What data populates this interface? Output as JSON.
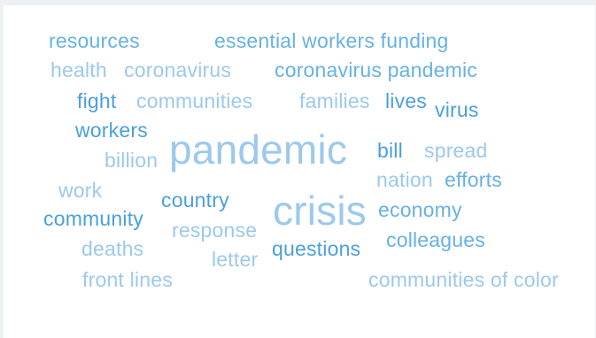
{
  "colors": {
    "dark": "#4a9fde",
    "mid": "#67b1e4",
    "light": "#9cc9ec",
    "background": "#ffffff"
  },
  "words": [
    {
      "id": "resources",
      "text": "resources"
    },
    {
      "id": "essential-workers-funding",
      "text": "essential workers funding"
    },
    {
      "id": "health",
      "text": "health"
    },
    {
      "id": "coronavirus",
      "text": "coronavirus"
    },
    {
      "id": "coronavirus-pandemic",
      "text": "coronavirus pandemic"
    },
    {
      "id": "fight",
      "text": "fight"
    },
    {
      "id": "communities",
      "text": "communities"
    },
    {
      "id": "families",
      "text": "families"
    },
    {
      "id": "lives",
      "text": "lives"
    },
    {
      "id": "virus",
      "text": "virus"
    },
    {
      "id": "workers",
      "text": "workers"
    },
    {
      "id": "pandemic",
      "text": "pandemic"
    },
    {
      "id": "billion",
      "text": "billion"
    },
    {
      "id": "bill",
      "text": "bill"
    },
    {
      "id": "spread",
      "text": "spread"
    },
    {
      "id": "work",
      "text": "work"
    },
    {
      "id": "nation",
      "text": "nation"
    },
    {
      "id": "efforts",
      "text": "efforts"
    },
    {
      "id": "country",
      "text": "country"
    },
    {
      "id": "crisis",
      "text": "crisis"
    },
    {
      "id": "community",
      "text": "community"
    },
    {
      "id": "economy",
      "text": "economy"
    },
    {
      "id": "response",
      "text": "response"
    },
    {
      "id": "deaths",
      "text": "deaths"
    },
    {
      "id": "colleagues",
      "text": "colleagues"
    },
    {
      "id": "letter",
      "text": "letter"
    },
    {
      "id": "questions",
      "text": "questions"
    },
    {
      "id": "front-lines",
      "text": "front lines"
    },
    {
      "id": "communities-of-color",
      "text": "communities of color"
    }
  ]
}
